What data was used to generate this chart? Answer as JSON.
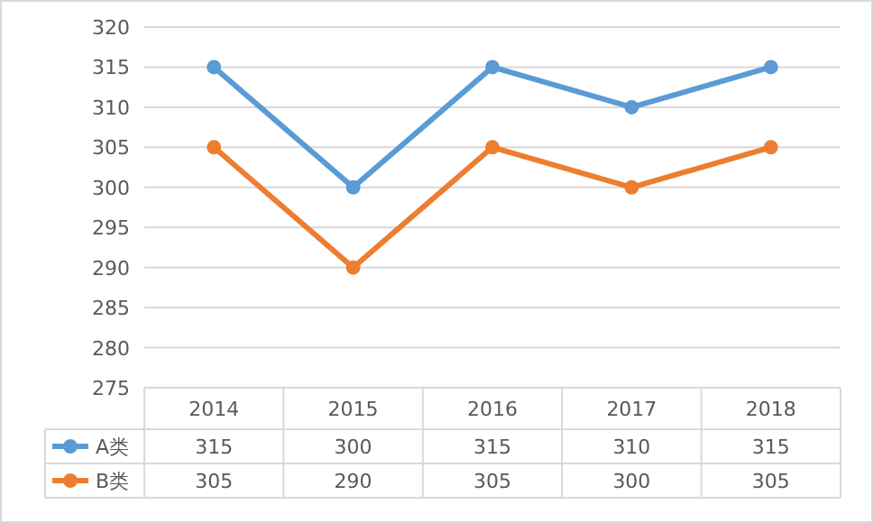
{
  "chart_data": {
    "type": "line",
    "categories": [
      "2014",
      "2015",
      "2016",
      "2017",
      "2018"
    ],
    "series": [
      {
        "name": "A类",
        "color": "#5b9bd5",
        "values": [
          315,
          300,
          315,
          310,
          315
        ]
      },
      {
        "name": "B类",
        "color": "#ed7d31",
        "values": [
          305,
          290,
          305,
          300,
          305
        ]
      }
    ],
    "ylim": [
      275,
      320
    ],
    "yticks": [
      275,
      280,
      285,
      290,
      295,
      300,
      305,
      310,
      315,
      320
    ],
    "grid": "y",
    "marker": "circle",
    "legend": "bottom",
    "data_labels": true
  }
}
